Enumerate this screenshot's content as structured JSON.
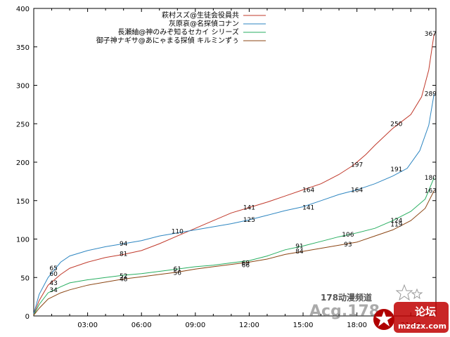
{
  "chart_data": {
    "type": "line",
    "title": "",
    "xlabel": "",
    "ylabel": "",
    "ylim": [
      0,
      400
    ],
    "yticks": [
      "0",
      "50",
      "100",
      "150",
      "200",
      "250",
      "300",
      "350",
      "400"
    ],
    "xticks": [
      "03:00",
      "06:00",
      "09:00",
      "12:00",
      "15:00",
      "18:00",
      "21:00"
    ],
    "xlim": [
      0,
      22.4
    ],
    "legend_position": "top-right",
    "grid": false,
    "series": [
      {
        "name": "萩村スズ@生徒会役員共",
        "color": "#c0392b",
        "points": [
          [
            0,
            2
          ],
          [
            0.3,
            20
          ],
          [
            0.8,
            40
          ],
          [
            1.5,
            54
          ],
          [
            2,
            62
          ],
          [
            3,
            70
          ],
          [
            4,
            76
          ],
          [
            5,
            80
          ],
          [
            6,
            85
          ],
          [
            7,
            94
          ],
          [
            8,
            104
          ],
          [
            9,
            114
          ],
          [
            10,
            124
          ],
          [
            11,
            134
          ],
          [
            12,
            141
          ],
          [
            13,
            148
          ],
          [
            14,
            156
          ],
          [
            15,
            164
          ],
          [
            16,
            172
          ],
          [
            17,
            184
          ],
          [
            17.8,
            196
          ],
          [
            18.5,
            210
          ],
          [
            19,
            222
          ],
          [
            20,
            244
          ],
          [
            21,
            262
          ],
          [
            21.6,
            285
          ],
          [
            22,
            320
          ],
          [
            22.3,
            367
          ]
        ],
        "labels": [
          {
            "x": 1.1,
            "y": 62,
            "text": "65"
          },
          {
            "x": 5,
            "y": 81,
            "text": "81"
          },
          {
            "x": 12,
            "y": 141,
            "text": "141"
          },
          {
            "x": 15.3,
            "y": 164,
            "text": "164"
          },
          {
            "x": 18,
            "y": 197,
            "text": "197"
          },
          {
            "x": 20.2,
            "y": 250,
            "text": "250"
          },
          {
            "x": 22.1,
            "y": 367,
            "text": "367"
          }
        ]
      },
      {
        "name": "灰原哀@名探偵コナン",
        "color": "#2e86c1",
        "points": [
          [
            0,
            3
          ],
          [
            0.3,
            28
          ],
          [
            0.8,
            50
          ],
          [
            1.5,
            70
          ],
          [
            2,
            78
          ],
          [
            3,
            85
          ],
          [
            4,
            90
          ],
          [
            5,
            94
          ],
          [
            6,
            98
          ],
          [
            7,
            104
          ],
          [
            8,
            108
          ],
          [
            9,
            112
          ],
          [
            10,
            116
          ],
          [
            11,
            120
          ],
          [
            12,
            125
          ],
          [
            13,
            131
          ],
          [
            14,
            137
          ],
          [
            15,
            142
          ],
          [
            16,
            150
          ],
          [
            17,
            158
          ],
          [
            18,
            164
          ],
          [
            19,
            172
          ],
          [
            20,
            182
          ],
          [
            20.8,
            192
          ],
          [
            21.5,
            215
          ],
          [
            22,
            248
          ],
          [
            22.3,
            289
          ]
        ],
        "labels": [
          {
            "x": 1.1,
            "y": 55,
            "text": "60"
          },
          {
            "x": 5,
            "y": 94,
            "text": "94"
          },
          {
            "x": 8,
            "y": 110,
            "text": "110"
          },
          {
            "x": 12,
            "y": 125,
            "text": "125"
          },
          {
            "x": 15.3,
            "y": 141,
            "text": "141"
          },
          {
            "x": 18,
            "y": 164,
            "text": "164"
          },
          {
            "x": 20.2,
            "y": 191,
            "text": "191"
          },
          {
            "x": 22.1,
            "y": 289,
            "text": "289"
          }
        ]
      },
      {
        "name": "長瀬紬@神のみぞ知るセカイ シリーズ",
        "color": "#27ae60",
        "points": [
          [
            0,
            1
          ],
          [
            0.3,
            15
          ],
          [
            0.8,
            30
          ],
          [
            1.5,
            38
          ],
          [
            2,
            43
          ],
          [
            3,
            47
          ],
          [
            4,
            50
          ],
          [
            5,
            53
          ],
          [
            6,
            55
          ],
          [
            7,
            58
          ],
          [
            8,
            61
          ],
          [
            9,
            64
          ],
          [
            10,
            66
          ],
          [
            11,
            69
          ],
          [
            12,
            72
          ],
          [
            13,
            78
          ],
          [
            14,
            86
          ],
          [
            15,
            91
          ],
          [
            16,
            97
          ],
          [
            17,
            103
          ],
          [
            18,
            108
          ],
          [
            19,
            114
          ],
          [
            20,
            124
          ],
          [
            21,
            136
          ],
          [
            21.8,
            152
          ],
          [
            22.3,
            180
          ]
        ],
        "labels": [
          {
            "x": 1.1,
            "y": 43,
            "text": "43"
          },
          {
            "x": 5,
            "y": 52,
            "text": "52"
          },
          {
            "x": 8,
            "y": 61,
            "text": "61"
          },
          {
            "x": 11.8,
            "y": 69,
            "text": "69"
          },
          {
            "x": 14.8,
            "y": 91,
            "text": "91"
          },
          {
            "x": 17.5,
            "y": 106,
            "text": "106"
          },
          {
            "x": 20.2,
            "y": 124,
            "text": "124"
          },
          {
            "x": 22.1,
            "y": 180,
            "text": "180"
          }
        ]
      },
      {
        "name": "御子神ナギサ@あにゃまる探偵 キルミンずぅ",
        "color": "#8b4513",
        "points": [
          [
            0,
            1
          ],
          [
            0.3,
            10
          ],
          [
            0.8,
            22
          ],
          [
            1.5,
            30
          ],
          [
            2,
            34
          ],
          [
            3,
            40
          ],
          [
            4,
            44
          ],
          [
            5,
            48
          ],
          [
            6,
            51
          ],
          [
            7,
            54
          ],
          [
            8,
            57
          ],
          [
            9,
            61
          ],
          [
            10,
            64
          ],
          [
            11,
            67
          ],
          [
            12,
            70
          ],
          [
            13,
            74
          ],
          [
            14,
            80
          ],
          [
            15,
            84
          ],
          [
            16,
            88
          ],
          [
            17,
            92
          ],
          [
            18,
            96
          ],
          [
            19,
            104
          ],
          [
            20,
            112
          ],
          [
            21,
            124
          ],
          [
            21.8,
            140
          ],
          [
            22.3,
            163
          ]
        ],
        "labels": [
          {
            "x": 1.1,
            "y": 34,
            "text": "34"
          },
          {
            "x": 5,
            "y": 48,
            "text": "48"
          },
          {
            "x": 8,
            "y": 56,
            "text": "56"
          },
          {
            "x": 11.8,
            "y": 66,
            "text": "66"
          },
          {
            "x": 14.8,
            "y": 84,
            "text": "84"
          },
          {
            "x": 17.5,
            "y": 93,
            "text": "93"
          },
          {
            "x": 20.2,
            "y": 119,
            "text": "119"
          },
          {
            "x": 22.1,
            "y": 163,
            "text": "163"
          }
        ]
      }
    ]
  },
  "watermark": {
    "line1": "178动漫频道",
    "line2": "Acg.178",
    "badge": "论坛",
    "site": "mzdzx.com"
  }
}
